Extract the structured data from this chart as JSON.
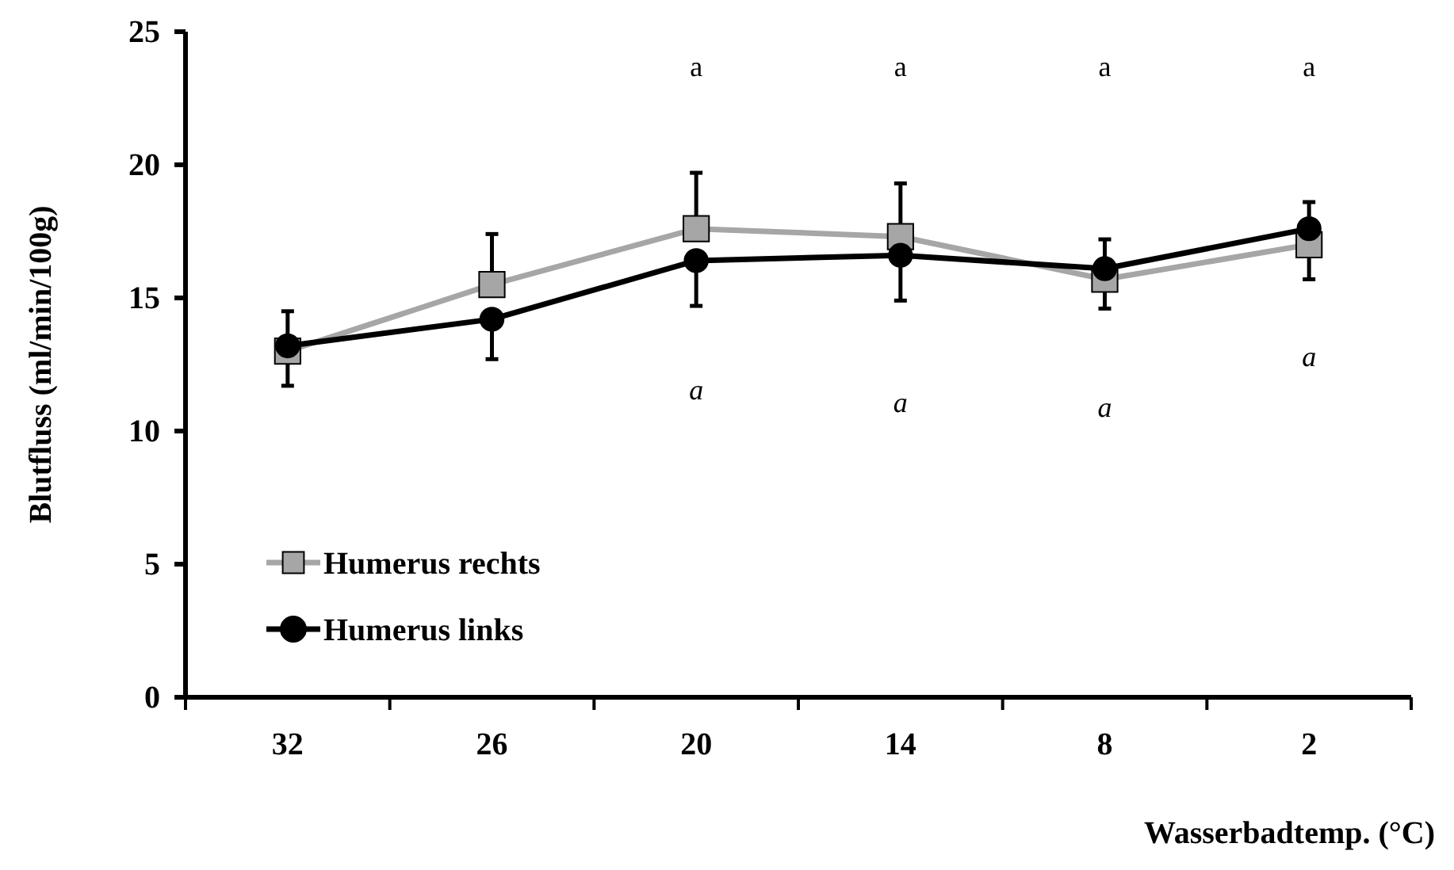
{
  "chart_data": {
    "type": "line",
    "xlabel": "Wasserbadtemp. (°C)",
    "ylabel": "Blutfluss (ml/min/100g)",
    "categories": [
      "32",
      "26",
      "20",
      "14",
      "8",
      "2"
    ],
    "ylim": [
      0,
      25
    ],
    "yticks": [
      0,
      5,
      10,
      15,
      20,
      25
    ],
    "grid": false,
    "legend": "bottom left",
    "line_style": "solid",
    "series": [
      {
        "name": "Humerus rechts",
        "color": "#a6a6a6",
        "marker": "square",
        "values": [
          13.0,
          15.5,
          17.6,
          17.3,
          15.7,
          17.0
        ],
        "errors": [
          [
            11.7,
            13.0
          ],
          [
            15.5,
            17.4
          ],
          [
            17.6,
            19.7
          ],
          [
            17.3,
            19.3
          ],
          [
            14.6,
            15.7
          ],
          [
            15.7,
            17.0
          ]
        ]
      },
      {
        "name": "Humerus links",
        "color": "#000000",
        "marker": "circle",
        "values": [
          13.2,
          14.2,
          16.4,
          16.6,
          16.1,
          17.6
        ],
        "errors": [
          [
            13.2,
            14.5
          ],
          [
            12.7,
            14.2
          ],
          [
            14.7,
            16.4
          ],
          [
            14.9,
            16.6
          ],
          [
            16.1,
            17.2
          ],
          [
            17.6,
            18.6
          ]
        ]
      }
    ],
    "annotations": [
      "a",
      "a",
      "a",
      "a",
      "a",
      "a",
      "a",
      "a"
    ]
  }
}
